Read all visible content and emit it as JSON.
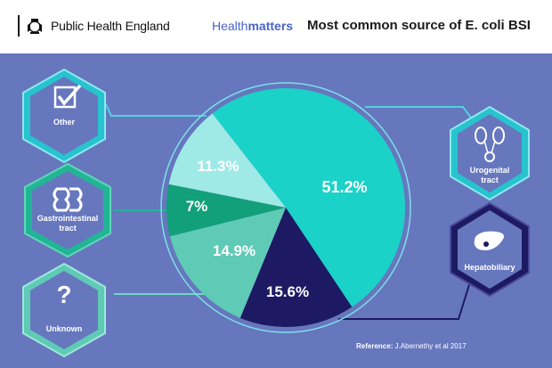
{
  "header": {
    "org_name": "Public Health England",
    "brand_part1": "Health",
    "brand_part2": "matters",
    "title": "Most common source of E. coli BSI"
  },
  "chart_data": {
    "type": "pie",
    "title": "Most common source of E. coli BSI",
    "slices": [
      {
        "label": "Urogenital tract",
        "value": 51.2,
        "display": "51.2%",
        "color": "#1ad2c8",
        "text_color": "#ffffff"
      },
      {
        "label": "Hepatobiliary",
        "value": 15.6,
        "display": "15.6%",
        "color": "#1d1a63",
        "text_color": "#ffffff"
      },
      {
        "label": "Unknown",
        "value": 14.9,
        "display": "14.9%",
        "color": "#5fcab5",
        "text_color": "#ffffff"
      },
      {
        "label": "Gastrointestinal tract",
        "value": 7,
        "display": "7%",
        "color": "#11a07a",
        "text_color": "#ffffff"
      },
      {
        "label": "Other",
        "value": 11.3,
        "display": "11.3%",
        "color": "#9fe9e6",
        "text_color": "#ffffff"
      }
    ]
  },
  "badges": {
    "other": "Other",
    "gastro_line1": "Gastrointestinal",
    "gastro_line2": "tract",
    "unknown": "Unknown",
    "urogenital_line1": "Urogenital",
    "urogenital_line2": "tract",
    "hepatobiliary": "Hepatobiliary"
  },
  "icons": {
    "other": "checkbox-icon",
    "gastro": "intestine-icon",
    "unknown": "question-mark-icon",
    "urogenital": "kidney-icon",
    "hepatobiliary": "liver-icon"
  },
  "reference": {
    "label": "Reference:",
    "text": " J.Abernethy et al 2017"
  },
  "colors": {
    "panel": "#6677be",
    "brand_blue": "#4a63c9",
    "badge_teal": "#27c3cf",
    "badge_dark": "#1d1a63"
  }
}
